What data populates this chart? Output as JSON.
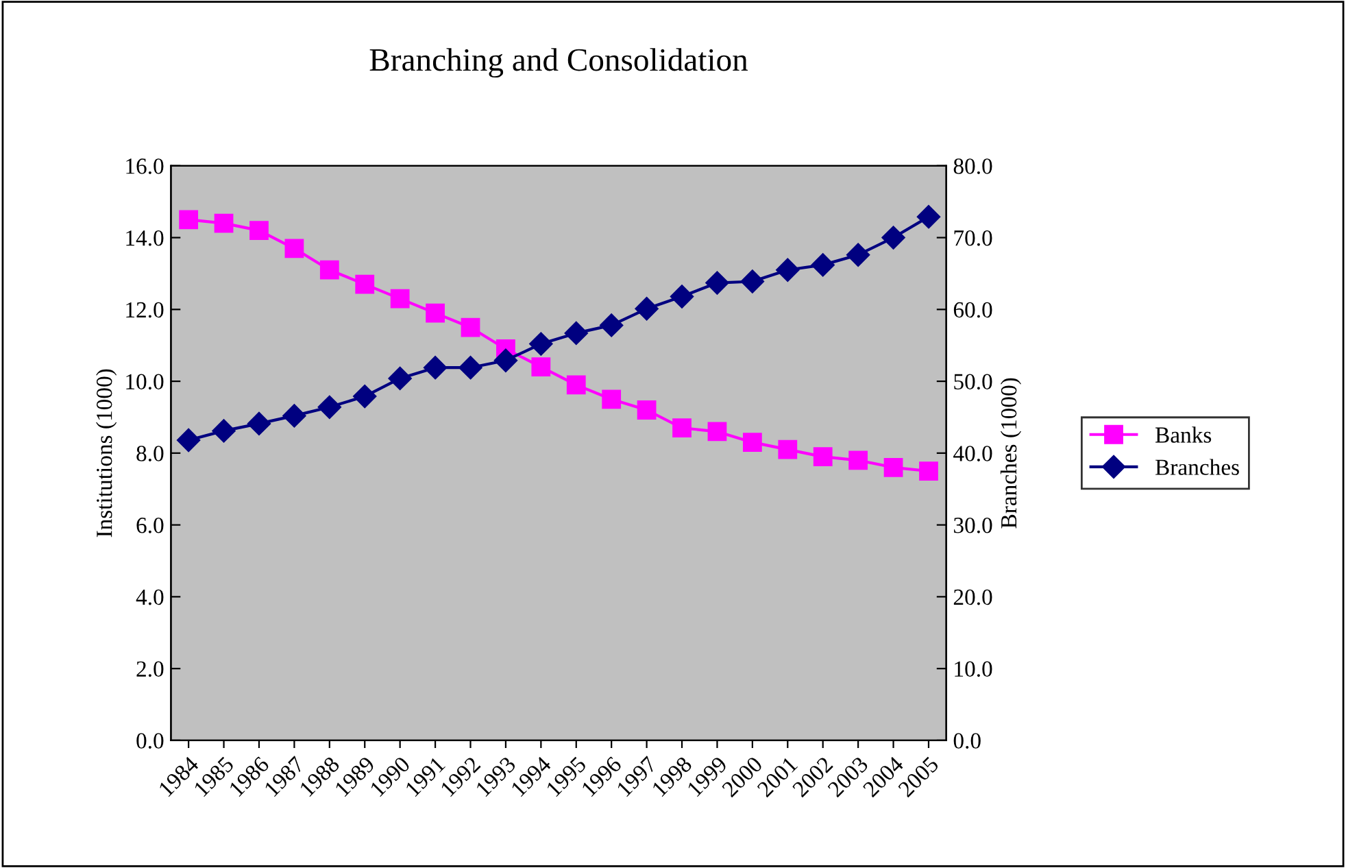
{
  "chart_data": {
    "type": "line",
    "title": "Branching and Consolidation",
    "ylabel": "Institutions (1000)",
    "y2label": "Branches (1000)",
    "categories": [
      "1984",
      "1985",
      "1986",
      "1987",
      "1988",
      "1989",
      "1990",
      "1991",
      "1992",
      "1993",
      "1994",
      "1995",
      "1996",
      "1997",
      "1998",
      "1999",
      "2000",
      "2001",
      "2002",
      "2003",
      "2004",
      "2005"
    ],
    "series": [
      {
        "name": "Banks",
        "color": "#ff00ff",
        "marker": "square",
        "values": [
          14.5,
          14.4,
          14.2,
          13.7,
          13.1,
          12.7,
          12.3,
          11.9,
          11.5,
          10.9,
          10.4,
          9.9,
          9.5,
          9.2,
          8.7,
          8.6,
          8.3,
          8.1,
          7.9,
          7.8,
          7.6,
          7.5
        ]
      },
      {
        "name": "Branches",
        "color": "#000080",
        "marker": "diamond",
        "axis": "y2",
        "values": [
          41.8,
          43.1,
          44.1,
          45.2,
          46.4,
          47.9,
          50.4,
          51.9,
          51.9,
          52.9,
          55.2,
          56.7,
          57.8,
          60.1,
          61.8,
          63.7,
          63.9,
          65.5,
          66.2,
          67.6,
          70.0,
          72.9
        ]
      }
    ],
    "ylim": [
      0,
      16
    ],
    "yticks": [
      {
        "value": 0,
        "label": "0.0"
      },
      {
        "value": 2,
        "label": "2.0"
      },
      {
        "value": 4,
        "label": "4.0"
      },
      {
        "value": 6,
        "label": "6.0"
      },
      {
        "value": 8,
        "label": "8.0"
      },
      {
        "value": 10,
        "label": "10.0"
      },
      {
        "value": 12,
        "label": "12.0"
      },
      {
        "value": 14,
        "label": "14.0"
      },
      {
        "value": 16,
        "label": "16.0"
      }
    ],
    "y2lim": [
      0,
      80
    ],
    "y2ticks": [
      {
        "value": 0,
        "label": "0.0"
      },
      {
        "value": 10,
        "label": "10.0"
      },
      {
        "value": 20,
        "label": "20.0"
      },
      {
        "value": 30,
        "label": "30.0"
      },
      {
        "value": 40,
        "label": "40.0"
      },
      {
        "value": 50,
        "label": "50.0"
      },
      {
        "value": 60,
        "label": "60.0"
      },
      {
        "value": 70,
        "label": "70.0"
      },
      {
        "value": 80,
        "label": "80.0"
      }
    ],
    "grid": false,
    "legend": "right",
    "line_style": "solid"
  }
}
